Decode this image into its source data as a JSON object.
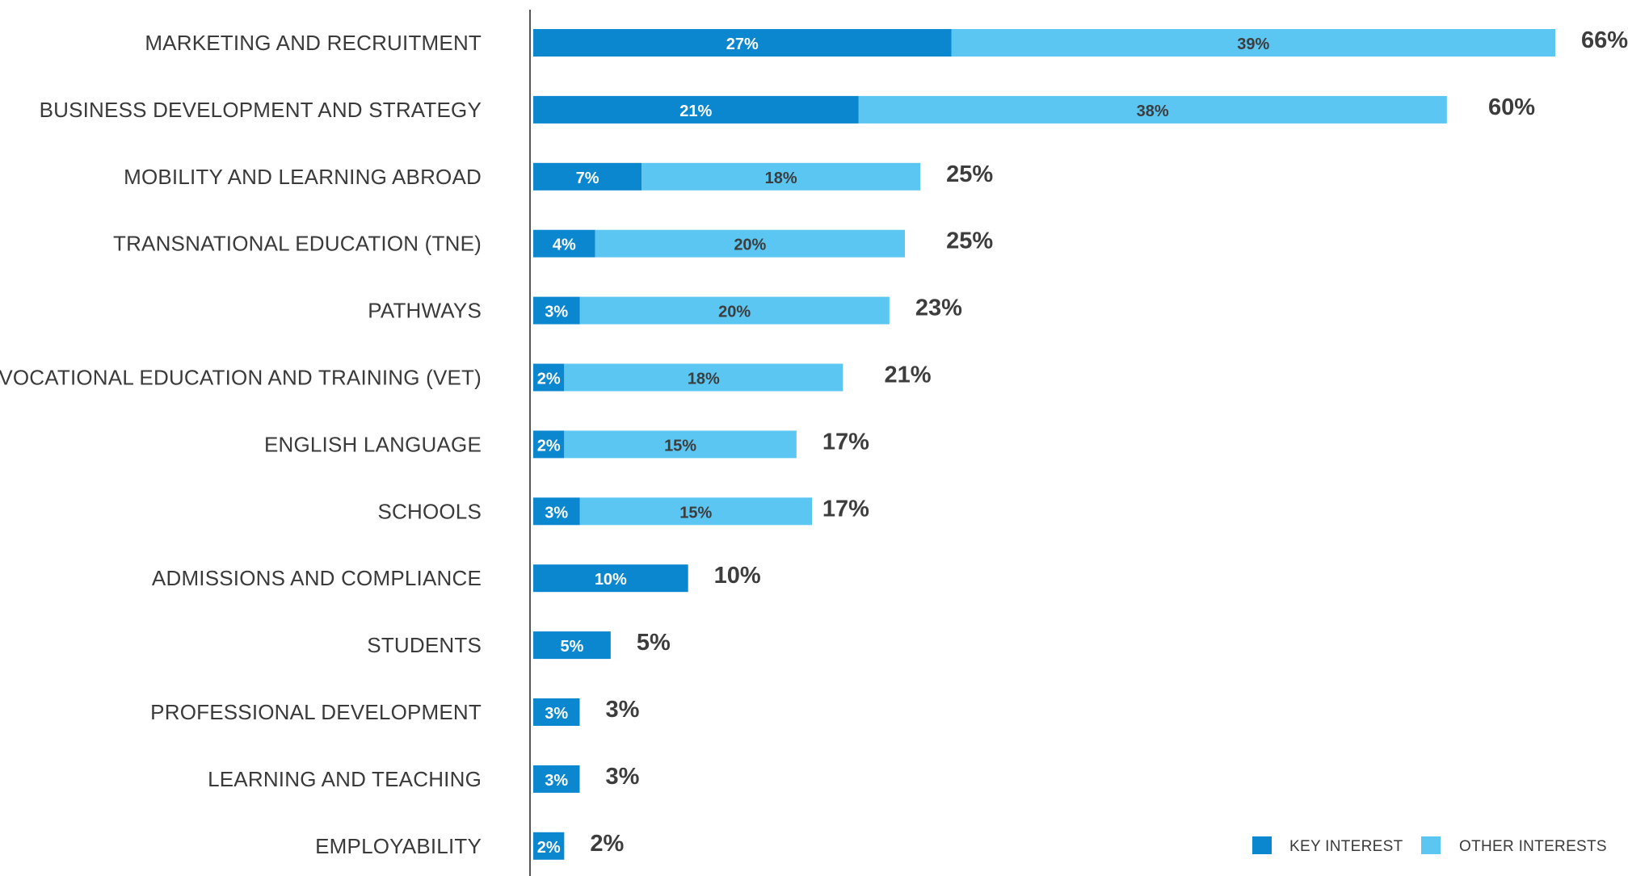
{
  "chart_data": {
    "type": "bar",
    "orientation": "horizontal",
    "stacked": true,
    "categories": [
      "MARKETING AND RECRUITMENT",
      "BUSINESS DEVELOPMENT AND STRATEGY",
      "MOBILITY AND LEARNING ABROAD",
      "TRANSNATIONAL EDUCATION (TNE)",
      "PATHWAYS",
      "VOCATIONAL EDUCATION AND TRAINING (VET)",
      "ENGLISH LANGUAGE",
      "SCHOOLS",
      "ADMISSIONS AND COMPLIANCE",
      "STUDENTS",
      "PROFESSIONAL DEVELOPMENT",
      "LEARNING AND TEACHING",
      "EMPLOYABILITY"
    ],
    "series": [
      {
        "name": "KEY INTEREST",
        "color": "#0a87cf",
        "label_color": "#ffffff",
        "values": [
          27,
          21,
          7,
          4,
          3,
          2,
          2,
          3,
          10,
          5,
          3,
          3,
          2
        ],
        "labels": [
          "27%",
          "21%",
          "7%",
          "4%",
          "3%",
          "2%",
          "2%",
          "3%",
          "10%",
          "5%",
          "3%",
          "3%",
          "2%"
        ]
      },
      {
        "name": "OTHER INTERESTS",
        "color": "#5bc6f2",
        "label_color": "#3d3d3d",
        "values": [
          39,
          38,
          18,
          20,
          20,
          18,
          15,
          15,
          0,
          0,
          0,
          0,
          0
        ],
        "labels": [
          "39%",
          "38%",
          "18%",
          "20%",
          "20%",
          "18%",
          "15%",
          "15%",
          "",
          "",
          "",
          "",
          ""
        ]
      }
    ],
    "totals": [
      66,
      60,
      25,
      25,
      23,
      21,
      17,
      17,
      10,
      5,
      3,
      3,
      2
    ],
    "total_labels": [
      "66%",
      "60%",
      "25%",
      "25%",
      "23%",
      "21%",
      "17%",
      "17%",
      "10%",
      "5%",
      "3%",
      "3%",
      "2%"
    ],
    "xlim": [
      0,
      66
    ],
    "title": "",
    "xlabel": "",
    "ylabel": "",
    "grid": false,
    "legend": {
      "position": "bottom-right",
      "items": [
        "KEY INTEREST",
        "OTHER INTERESTS"
      ]
    },
    "axis_color": "#555555"
  }
}
